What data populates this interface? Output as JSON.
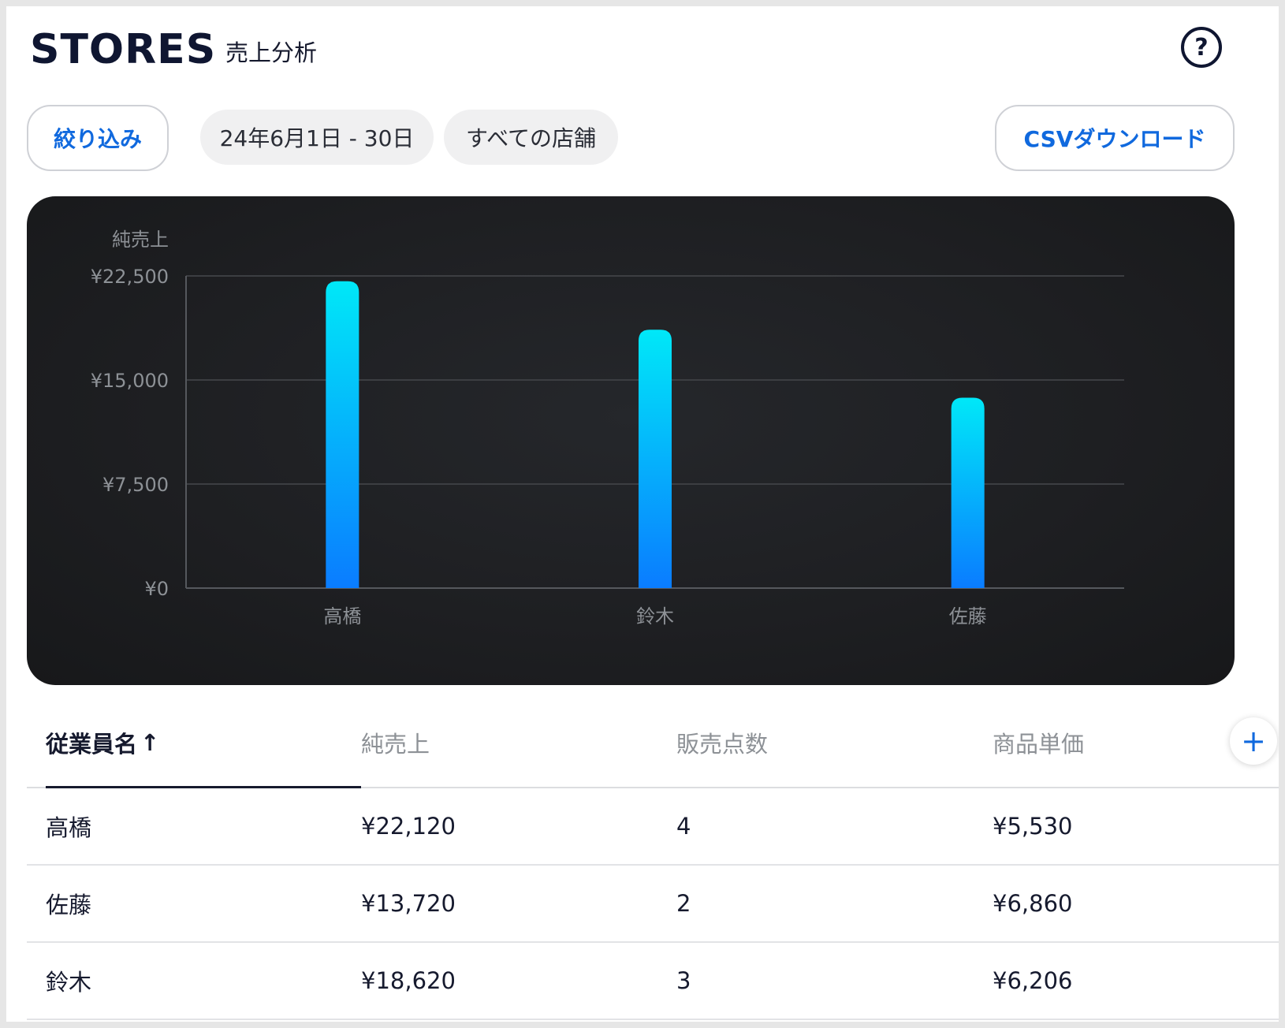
{
  "header": {
    "logo": "STORES",
    "title": "売上分析",
    "help_icon": "?"
  },
  "toolbar": {
    "filter_label": "絞り込み",
    "date_range": "24年6月1日 - 30日",
    "store_scope": "すべての店舗",
    "csv_label": "CSVダウンロード"
  },
  "chart_data": {
    "type": "bar",
    "title": "",
    "ylabel": "純売上",
    "xlabel": "",
    "categories": [
      "高橋",
      "鈴木",
      "佐藤"
    ],
    "values": [
      22120,
      18620,
      13720
    ],
    "ylim": [
      0,
      22500
    ],
    "yticks": [
      0,
      7500,
      15000,
      22500
    ],
    "ytick_labels": [
      "¥0",
      "¥7,500",
      "¥15,000",
      "¥22,500"
    ],
    "grid": true,
    "colors": {
      "bar_top": "#00e8f8",
      "bar_bottom": "#0a7cff"
    }
  },
  "table": {
    "columns": [
      {
        "label": "従業員名",
        "sort_icon": "↑"
      },
      {
        "label": "純売上"
      },
      {
        "label": "販売点数"
      },
      {
        "label": "商品単価"
      }
    ],
    "add_column_icon": "+",
    "rows": [
      {
        "name": "高橋",
        "net_sales": "¥22,120",
        "items": "4",
        "unit_price": "¥5,530"
      },
      {
        "name": "佐藤",
        "net_sales": "¥13,720",
        "items": "2",
        "unit_price": "¥6,860"
      },
      {
        "name": "鈴木",
        "net_sales": "¥18,620",
        "items": "3",
        "unit_price": "¥6,206"
      }
    ]
  }
}
